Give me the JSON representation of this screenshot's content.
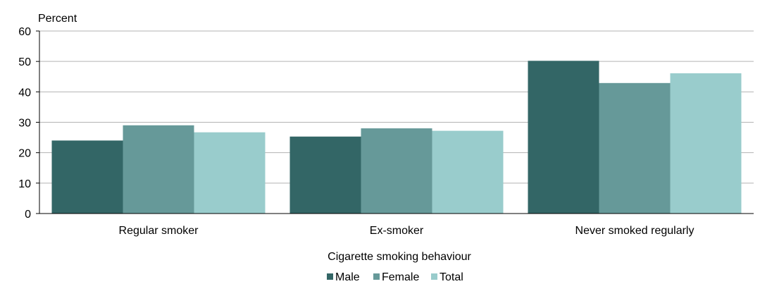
{
  "chart_data": {
    "type": "bar",
    "title": "",
    "ylabel": "Percent",
    "xlabel": "Cigarette smoking behaviour",
    "ylim": [
      0,
      60
    ],
    "yticks": [
      0,
      10,
      20,
      30,
      40,
      50,
      60
    ],
    "grid": true,
    "legend_position": "bottom",
    "categories": [
      "Regular smoker",
      "Ex-smoker",
      "Never smoked regularly"
    ],
    "series": [
      {
        "name": "Male",
        "color": "#336666",
        "values": [
          24,
          25.3,
          50.2
        ]
      },
      {
        "name": "Female",
        "color": "#669999",
        "values": [
          29,
          28,
          42.9
        ]
      },
      {
        "name": "Total",
        "color": "#99cccc",
        "values": [
          26.7,
          27.2,
          46.1
        ]
      }
    ]
  }
}
